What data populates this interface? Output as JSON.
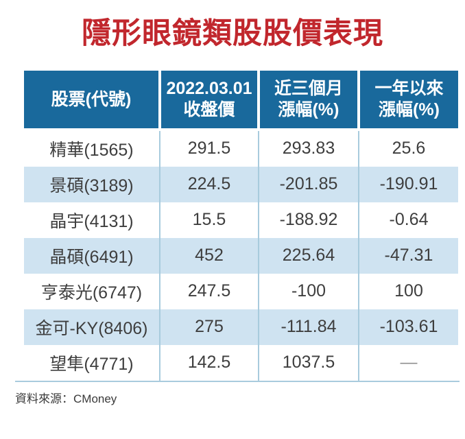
{
  "chart_data": {
    "type": "table",
    "title": "隱形眼鏡類股股價表現",
    "columns": [
      {
        "line1": "股票(代號)",
        "line2": ""
      },
      {
        "line1": "2022.03.01",
        "line2": "收盤價"
      },
      {
        "line1": "近三個月",
        "line2": "漲幅(%)"
      },
      {
        "line1": "一年以來",
        "line2": "漲幅(%)"
      }
    ],
    "rows": [
      {
        "stock": "精華(1565)",
        "close": "291.5",
        "three_month": "293.83",
        "one_year": "25.6"
      },
      {
        "stock": "景碩(3189)",
        "close": "224.5",
        "three_month": "-201.85",
        "one_year": "-190.91"
      },
      {
        "stock": "晶宇(4131)",
        "close": "15.5",
        "three_month": "-188.92",
        "one_year": "-0.64"
      },
      {
        "stock": "晶碩(6491)",
        "close": "452",
        "three_month": "225.64",
        "one_year": "-47.31"
      },
      {
        "stock": "亨泰光(6747)",
        "close": "247.5",
        "three_month": "-100",
        "one_year": "100"
      },
      {
        "stock": "金可-KY(8406)",
        "close": "275",
        "three_month": "-111.84",
        "one_year": "-103.61"
      },
      {
        "stock": "望隼(4771)",
        "close": "142.5",
        "three_month": "1037.5",
        "one_year": "—"
      }
    ],
    "source_label": "資料來源：CMoney"
  },
  "colors": {
    "title_red": "#c1272d",
    "header_blue": "#19699c",
    "row_alt_blue": "#cfe3f1",
    "grid_line": "#a8cbdd",
    "body_text": "#3e3e3e",
    "dash_gray": "#8f8f8f"
  }
}
